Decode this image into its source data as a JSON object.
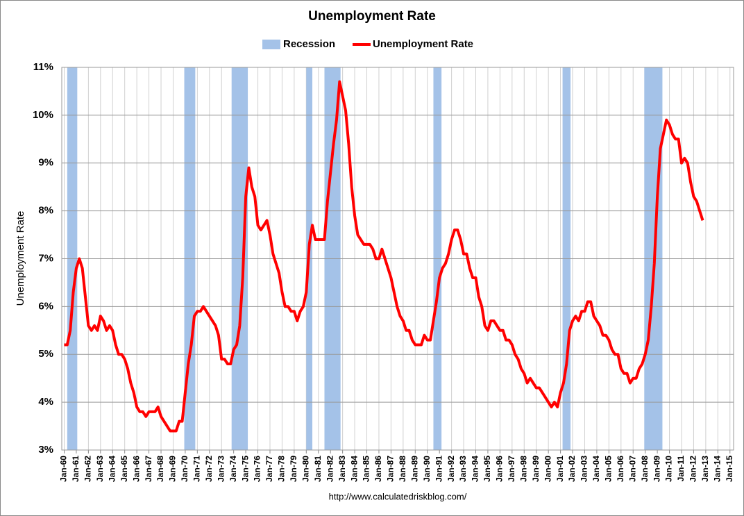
{
  "chart_data": {
    "type": "line",
    "title": "Unemployment Rate",
    "ylabel": "Unemployment Rate",
    "source": "http://www.calculatedriskblog.com/",
    "legend": "top",
    "grid": true,
    "xlim": [
      1959.8,
      2015.3
    ],
    "ylim": [
      3,
      11
    ],
    "yticks": [
      {
        "value": 3,
        "label": "3%"
      },
      {
        "value": 4,
        "label": "4%"
      },
      {
        "value": 5,
        "label": "5%"
      },
      {
        "value": 6,
        "label": "6%"
      },
      {
        "value": 7,
        "label": "7%"
      },
      {
        "value": 8,
        "label": "8%"
      },
      {
        "value": 9,
        "label": "9%"
      },
      {
        "value": 10,
        "label": "10%"
      },
      {
        "value": 11,
        "label": "11%"
      }
    ],
    "xticks": [
      {
        "value": 1960,
        "label": "Jan-60"
      },
      {
        "value": 1961,
        "label": "Jan-61"
      },
      {
        "value": 1962,
        "label": "Jan-62"
      },
      {
        "value": 1963,
        "label": "Jan-63"
      },
      {
        "value": 1964,
        "label": "Jan-64"
      },
      {
        "value": 1965,
        "label": "Jan-65"
      },
      {
        "value": 1966,
        "label": "Jan-66"
      },
      {
        "value": 1967,
        "label": "Jan-67"
      },
      {
        "value": 1968,
        "label": "Jan-68"
      },
      {
        "value": 1969,
        "label": "Jan-69"
      },
      {
        "value": 1970,
        "label": "Jan-70"
      },
      {
        "value": 1971,
        "label": "Jan-71"
      },
      {
        "value": 1972,
        "label": "Jan-72"
      },
      {
        "value": 1973,
        "label": "Jan-73"
      },
      {
        "value": 1974,
        "label": "Jan-74"
      },
      {
        "value": 1975,
        "label": "Jan-75"
      },
      {
        "value": 1976,
        "label": "Jan-76"
      },
      {
        "value": 1977,
        "label": "Jan-77"
      },
      {
        "value": 1978,
        "label": "Jan-78"
      },
      {
        "value": 1979,
        "label": "Jan-79"
      },
      {
        "value": 1980,
        "label": "Jan-80"
      },
      {
        "value": 1981,
        "label": "Jan-81"
      },
      {
        "value": 1982,
        "label": "Jan-82"
      },
      {
        "value": 1983,
        "label": "Jan-83"
      },
      {
        "value": 1984,
        "label": "Jan-84"
      },
      {
        "value": 1985,
        "label": "Jan-85"
      },
      {
        "value": 1986,
        "label": "Jan-86"
      },
      {
        "value": 1987,
        "label": "Jan-87"
      },
      {
        "value": 1988,
        "label": "Jan-88"
      },
      {
        "value": 1989,
        "label": "Jan-89"
      },
      {
        "value": 1990,
        "label": "Jan-90"
      },
      {
        "value": 1991,
        "label": "Jan-91"
      },
      {
        "value": 1992,
        "label": "Jan-92"
      },
      {
        "value": 1993,
        "label": "Jan-93"
      },
      {
        "value": 1994,
        "label": "Jan-94"
      },
      {
        "value": 1995,
        "label": "Jan-95"
      },
      {
        "value": 1996,
        "label": "Jan-96"
      },
      {
        "value": 1997,
        "label": "Jan-97"
      },
      {
        "value": 1998,
        "label": "Jan-98"
      },
      {
        "value": 1999,
        "label": "Jan-99"
      },
      {
        "value": 2000,
        "label": "Jan-00"
      },
      {
        "value": 2001,
        "label": "Jan-01"
      },
      {
        "value": 2002,
        "label": "Jan-02"
      },
      {
        "value": 2003,
        "label": "Jan-03"
      },
      {
        "value": 2004,
        "label": "Jan-04"
      },
      {
        "value": 2005,
        "label": "Jan-05"
      },
      {
        "value": 2006,
        "label": "Jan-06"
      },
      {
        "value": 2007,
        "label": "Jan-07"
      },
      {
        "value": 2008,
        "label": "Jan-08"
      },
      {
        "value": 2009,
        "label": "Jan-09"
      },
      {
        "value": 2010,
        "label": "Jan-10"
      },
      {
        "value": 2011,
        "label": "Jan-11"
      },
      {
        "value": 2012,
        "label": "Jan-12"
      },
      {
        "value": 2013,
        "label": "Jan-13"
      },
      {
        "value": 2014,
        "label": "Jan-14"
      },
      {
        "value": 2015,
        "label": "Jan-15"
      }
    ],
    "recession": {
      "name": "Recession",
      "color": "#a4c2e8",
      "spans": [
        [
          1960.25,
          1961.08
        ],
        [
          1969.92,
          1970.83
        ],
        [
          1973.83,
          1975.17
        ],
        [
          1980.0,
          1980.5
        ],
        [
          1981.5,
          1982.83
        ],
        [
          1990.5,
          1991.17
        ],
        [
          2001.17,
          2001.83
        ],
        [
          2007.92,
          2009.42
        ]
      ]
    },
    "series": [
      {
        "name": "Unemployment Rate",
        "color": "#ff0000",
        "x": [
          1960,
          1960.25,
          1960.5,
          1960.75,
          1961,
          1961.25,
          1961.5,
          1961.75,
          1962,
          1962.25,
          1962.5,
          1962.75,
          1963,
          1963.25,
          1963.5,
          1963.75,
          1964,
          1964.25,
          1964.5,
          1964.75,
          1965,
          1965.25,
          1965.5,
          1965.75,
          1966,
          1966.25,
          1966.5,
          1966.75,
          1967,
          1967.25,
          1967.5,
          1967.75,
          1968,
          1968.25,
          1968.5,
          1968.75,
          1969,
          1969.25,
          1969.5,
          1969.75,
          1970,
          1970.25,
          1970.5,
          1970.75,
          1971,
          1971.25,
          1971.5,
          1971.75,
          1972,
          1972.25,
          1972.5,
          1972.75,
          1973,
          1973.25,
          1973.5,
          1973.75,
          1974,
          1974.25,
          1974.5,
          1974.75,
          1975,
          1975.25,
          1975.5,
          1975.75,
          1976,
          1976.25,
          1976.5,
          1976.75,
          1977,
          1977.25,
          1977.5,
          1977.75,
          1978,
          1978.25,
          1978.5,
          1978.75,
          1979,
          1979.25,
          1979.5,
          1979.75,
          1980,
          1980.25,
          1980.5,
          1980.75,
          1981,
          1981.25,
          1981.5,
          1981.75,
          1982,
          1982.25,
          1982.5,
          1982.75,
          1983,
          1983.25,
          1983.5,
          1983.75,
          1984,
          1984.25,
          1984.5,
          1984.75,
          1985,
          1985.25,
          1985.5,
          1985.75,
          1986,
          1986.25,
          1986.5,
          1986.75,
          1987,
          1987.25,
          1987.5,
          1987.75,
          1988,
          1988.25,
          1988.5,
          1988.75,
          1989,
          1989.25,
          1989.5,
          1989.75,
          1990,
          1990.25,
          1990.5,
          1990.75,
          1991,
          1991.25,
          1991.5,
          1991.75,
          1992,
          1992.25,
          1992.5,
          1992.75,
          1993,
          1993.25,
          1993.5,
          1993.75,
          1994,
          1994.25,
          1994.5,
          1994.75,
          1995,
          1995.25,
          1995.5,
          1995.75,
          1996,
          1996.25,
          1996.5,
          1996.75,
          1997,
          1997.25,
          1997.5,
          1997.75,
          1998,
          1998.25,
          1998.5,
          1998.75,
          1999,
          1999.25,
          1999.5,
          1999.75,
          2000,
          2000.25,
          2000.5,
          2000.75,
          2001,
          2001.25,
          2001.5,
          2001.75,
          2002,
          2002.25,
          2002.5,
          2002.75,
          2003,
          2003.25,
          2003.5,
          2003.75,
          2004,
          2004.25,
          2004.5,
          2004.75,
          2005,
          2005.25,
          2005.5,
          2005.75,
          2006,
          2006.25,
          2006.5,
          2006.75,
          2007,
          2007.25,
          2007.5,
          2007.75,
          2008,
          2008.25,
          2008.5,
          2008.75,
          2009,
          2009.25,
          2009.5,
          2009.75,
          2010,
          2010.25,
          2010.5,
          2010.75,
          2011,
          2011.25,
          2011.5,
          2011.75,
          2012,
          2012.25,
          2012.5,
          2012.75
        ],
        "values": [
          5.2,
          5.2,
          5.5,
          6.3,
          6.8,
          7.0,
          6.8,
          6.2,
          5.6,
          5.5,
          5.6,
          5.5,
          5.8,
          5.7,
          5.5,
          5.6,
          5.5,
          5.2,
          5.0,
          5.0,
          4.9,
          4.7,
          4.4,
          4.2,
          3.9,
          3.8,
          3.8,
          3.7,
          3.8,
          3.8,
          3.8,
          3.9,
          3.7,
          3.6,
          3.5,
          3.4,
          3.4,
          3.4,
          3.6,
          3.6,
          4.2,
          4.8,
          5.2,
          5.8,
          5.9,
          5.9,
          6.0,
          5.9,
          5.8,
          5.7,
          5.6,
          5.4,
          4.9,
          4.9,
          4.8,
          4.8,
          5.1,
          5.2,
          5.6,
          6.6,
          8.3,
          8.9,
          8.5,
          8.3,
          7.7,
          7.6,
          7.7,
          7.8,
          7.5,
          7.1,
          6.9,
          6.7,
          6.3,
          6.0,
          6.0,
          5.9,
          5.9,
          5.7,
          5.9,
          6.0,
          6.3,
          7.3,
          7.7,
          7.4,
          7.4,
          7.4,
          7.4,
          8.2,
          8.8,
          9.4,
          9.9,
          10.7,
          10.4,
          10.1,
          9.4,
          8.5,
          7.9,
          7.5,
          7.4,
          7.3,
          7.3,
          7.3,
          7.2,
          7.0,
          7.0,
          7.2,
          7.0,
          6.8,
          6.6,
          6.3,
          6.0,
          5.8,
          5.7,
          5.5,
          5.5,
          5.3,
          5.2,
          5.2,
          5.2,
          5.4,
          5.3,
          5.3,
          5.7,
          6.1,
          6.6,
          6.8,
          6.9,
          7.1,
          7.4,
          7.6,
          7.6,
          7.4,
          7.1,
          7.1,
          6.8,
          6.6,
          6.6,
          6.2,
          6.0,
          5.6,
          5.5,
          5.7,
          5.7,
          5.6,
          5.5,
          5.5,
          5.3,
          5.3,
          5.2,
          5.0,
          4.9,
          4.7,
          4.6,
          4.4,
          4.5,
          4.4,
          4.3,
          4.3,
          4.2,
          4.1,
          4.0,
          3.9,
          4.0,
          3.9,
          4.2,
          4.4,
          4.8,
          5.5,
          5.7,
          5.8,
          5.7,
          5.9,
          5.9,
          6.1,
          6.1,
          5.8,
          5.7,
          5.6,
          5.4,
          5.4,
          5.3,
          5.1,
          5.0,
          5.0,
          4.7,
          4.6,
          4.6,
          4.4,
          4.5,
          4.5,
          4.7,
          4.8,
          5.0,
          5.3,
          6.0,
          6.9,
          8.3,
          9.3,
          9.6,
          9.9,
          9.8,
          9.6,
          9.5,
          9.5,
          9.0,
          9.1,
          9.0,
          8.6,
          8.3,
          8.2,
          8.0,
          7.8
        ]
      }
    ]
  }
}
